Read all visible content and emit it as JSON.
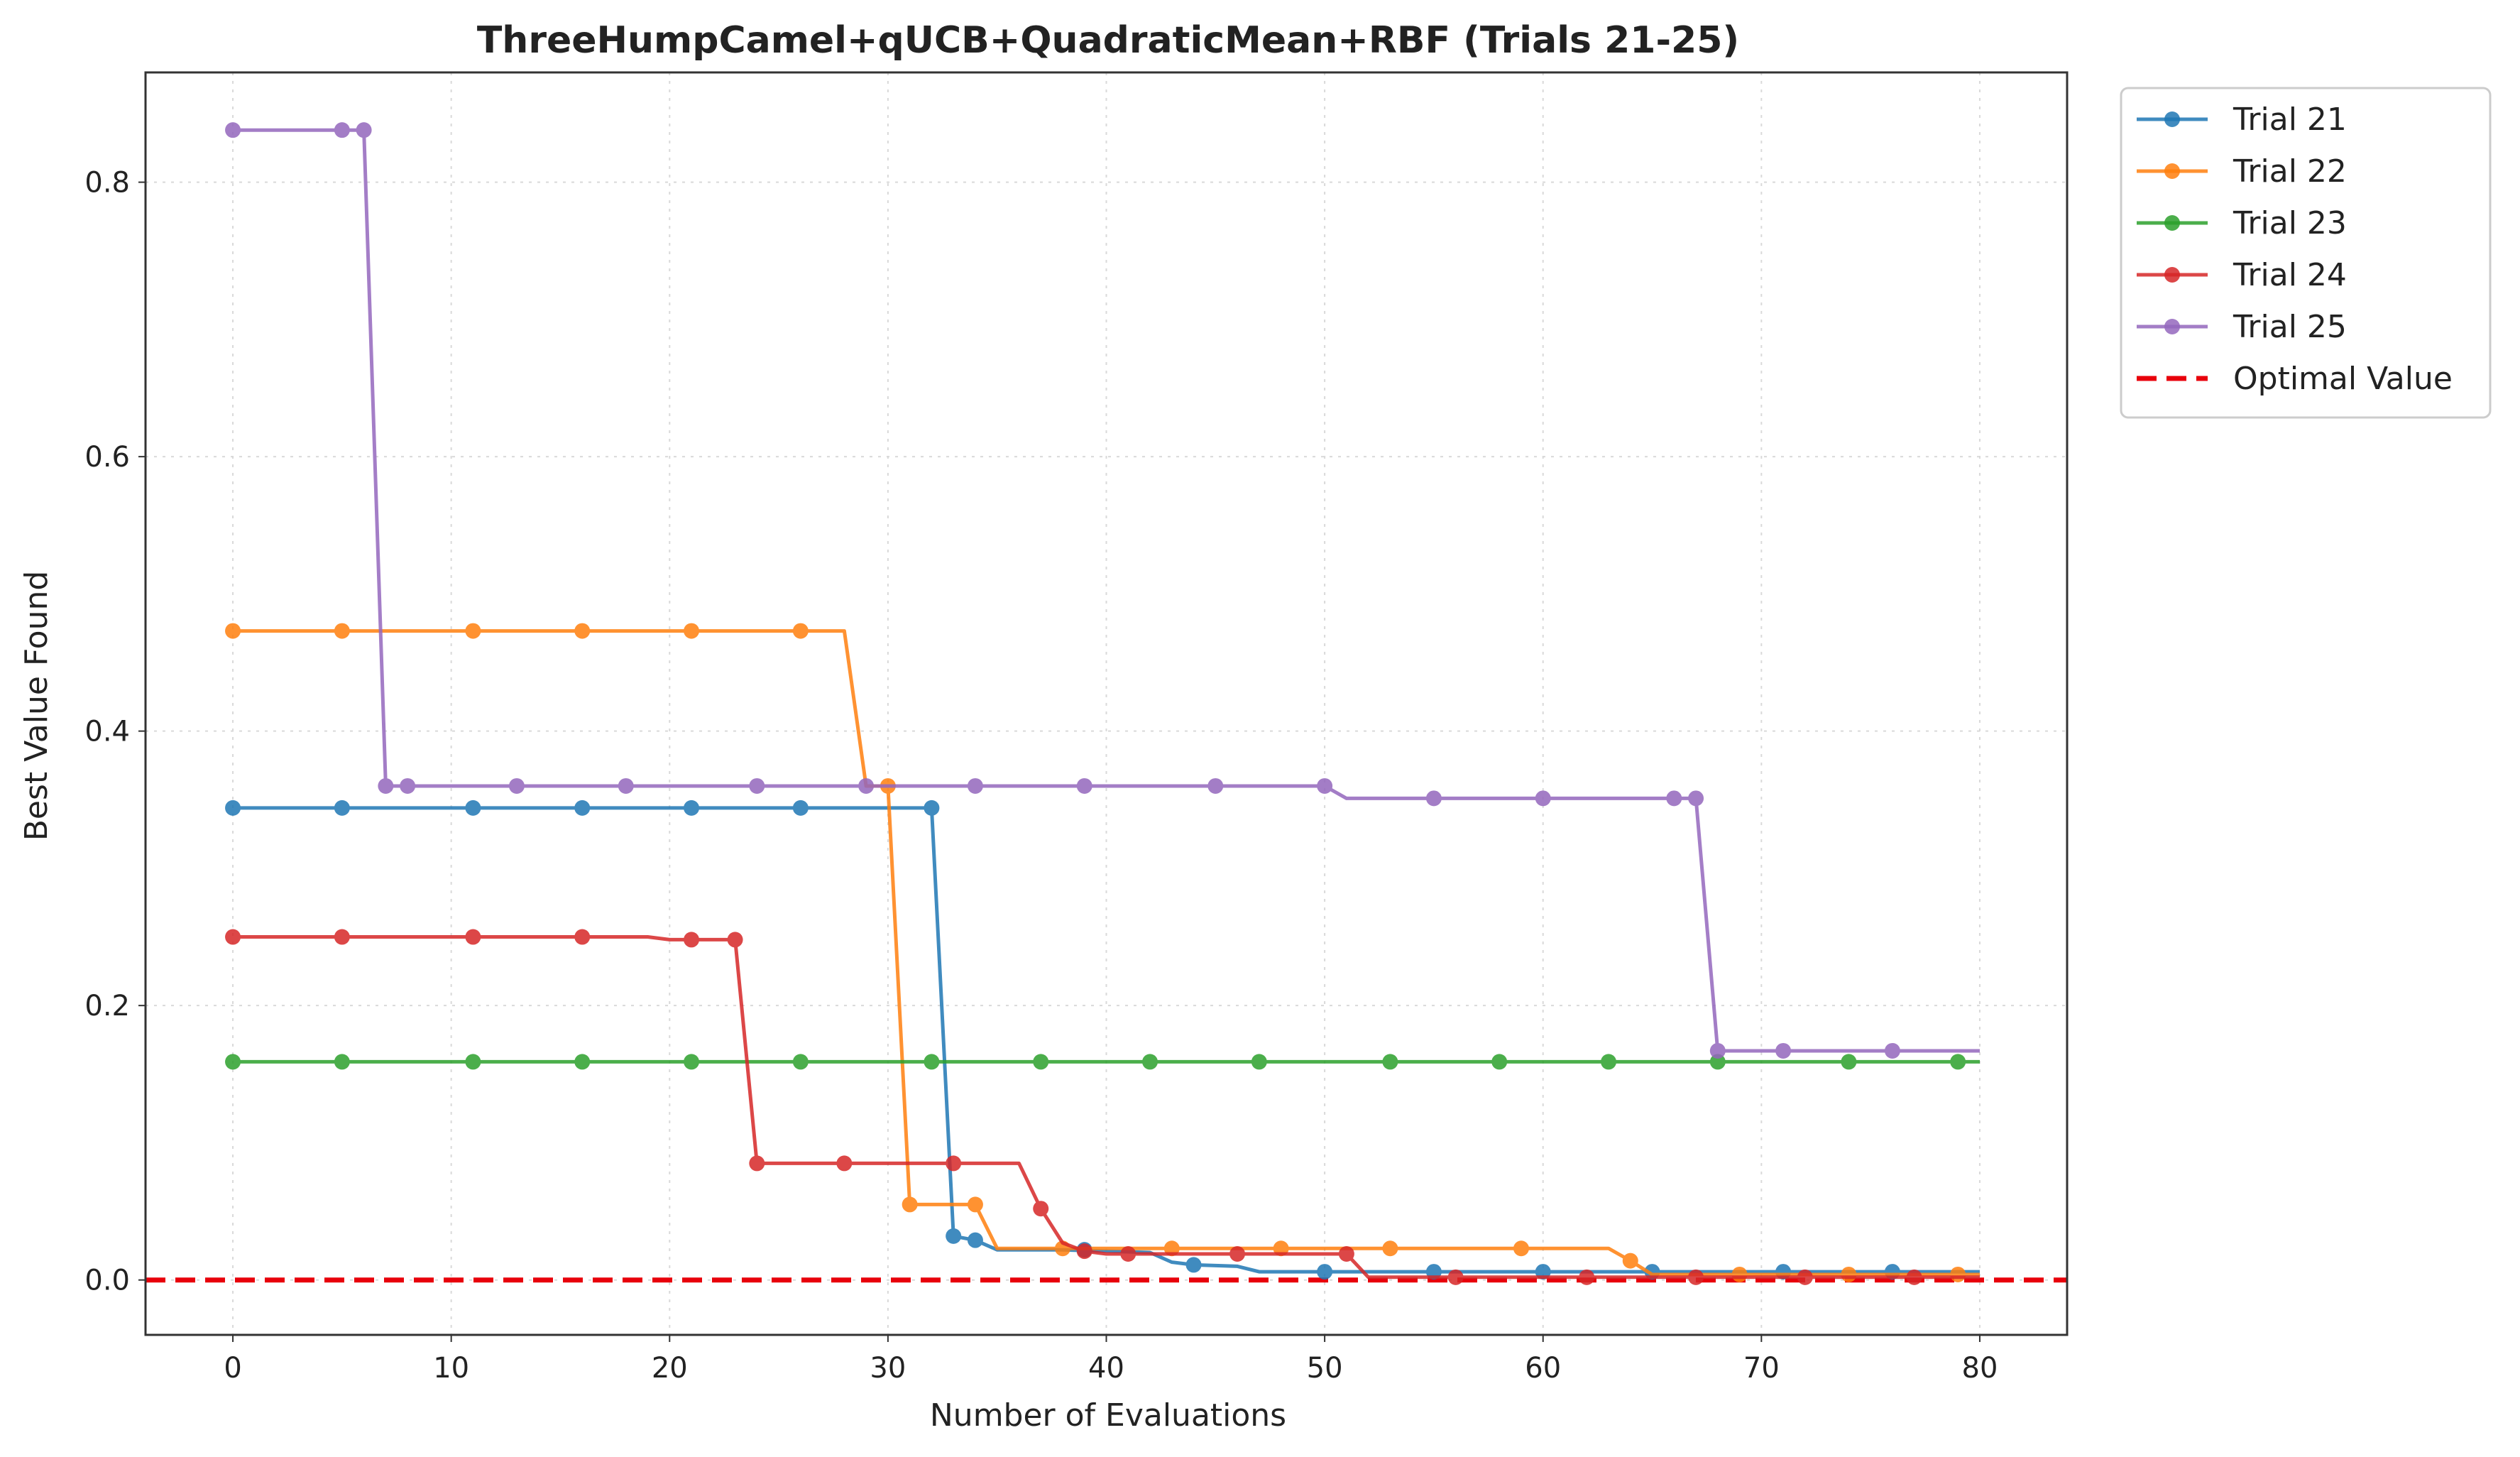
{
  "chart_data": {
    "type": "line",
    "title": "ThreeHumpCamel+qUCB+QuadraticMean+RBF (Trials 21-25)",
    "xlabel": "Number of Evaluations",
    "ylabel": "Best Value Found",
    "xlim": [
      -4,
      84
    ],
    "ylim": [
      -0.04,
      0.88
    ],
    "xticks": [
      0,
      10,
      20,
      30,
      40,
      50,
      60,
      70,
      80
    ],
    "yticks": [
      0.0,
      0.2,
      0.4,
      0.6,
      0.8
    ],
    "xtick_labels": [
      "0",
      "10",
      "20",
      "30",
      "40",
      "50",
      "60",
      "70",
      "80"
    ],
    "ytick_labels": [
      "0.0",
      "0.2",
      "0.4",
      "0.6",
      "0.8"
    ],
    "grid": true,
    "legend_position": "outside-top-right",
    "optimal_value": 0.0,
    "series": [
      {
        "name": "Trial 21",
        "color": "#1f77b4",
        "line": [
          [
            0,
            0.344
          ],
          [
            32,
            0.344
          ],
          [
            33,
            0.032
          ],
          [
            34,
            0.029
          ],
          [
            35,
            0.022
          ],
          [
            38,
            0.022
          ],
          [
            42,
            0.02
          ],
          [
            43,
            0.013
          ],
          [
            44,
            0.011
          ],
          [
            46,
            0.01
          ],
          [
            47,
            0.006
          ],
          [
            80,
            0.006
          ]
        ],
        "markers": [
          [
            0,
            0.344
          ],
          [
            5,
            0.344
          ],
          [
            11,
            0.344
          ],
          [
            16,
            0.344
          ],
          [
            21,
            0.344
          ],
          [
            26,
            0.344
          ],
          [
            32,
            0.344
          ],
          [
            33,
            0.032
          ],
          [
            34,
            0.029
          ],
          [
            39,
            0.022
          ],
          [
            44,
            0.011
          ],
          [
            50,
            0.006
          ],
          [
            55,
            0.006
          ],
          [
            60,
            0.006
          ],
          [
            65,
            0.006
          ],
          [
            71,
            0.006
          ],
          [
            76,
            0.006
          ]
        ]
      },
      {
        "name": "Trial 22",
        "color": "#ff7f0e",
        "line": [
          [
            0,
            0.473
          ],
          [
            28,
            0.473
          ],
          [
            29,
            0.36
          ],
          [
            30,
            0.36
          ],
          [
            31,
            0.055
          ],
          [
            34,
            0.055
          ],
          [
            35,
            0.023
          ],
          [
            63,
            0.023
          ],
          [
            64,
            0.014
          ],
          [
            65,
            0.004
          ],
          [
            80,
            0.004
          ]
        ],
        "markers": [
          [
            0,
            0.473
          ],
          [
            5,
            0.473
          ],
          [
            11,
            0.473
          ],
          [
            16,
            0.473
          ],
          [
            21,
            0.473
          ],
          [
            26,
            0.473
          ],
          [
            30,
            0.36
          ],
          [
            31,
            0.055
          ],
          [
            34,
            0.055
          ],
          [
            38,
            0.023
          ],
          [
            43,
            0.023
          ],
          [
            48,
            0.023
          ],
          [
            53,
            0.023
          ],
          [
            59,
            0.023
          ],
          [
            64,
            0.014
          ],
          [
            69,
            0.004
          ],
          [
            74,
            0.004
          ],
          [
            79,
            0.004
          ]
        ]
      },
      {
        "name": "Trial 23",
        "color": "#2ca02c",
        "line": [
          [
            0,
            0.159
          ],
          [
            80,
            0.159
          ]
        ],
        "markers": [
          [
            0,
            0.159
          ],
          [
            5,
            0.159
          ],
          [
            11,
            0.159
          ],
          [
            16,
            0.159
          ],
          [
            21,
            0.159
          ],
          [
            26,
            0.159
          ],
          [
            32,
            0.159
          ],
          [
            37,
            0.159
          ],
          [
            42,
            0.159
          ],
          [
            47,
            0.159
          ],
          [
            53,
            0.159
          ],
          [
            58,
            0.159
          ],
          [
            63,
            0.159
          ],
          [
            68,
            0.159
          ],
          [
            74,
            0.159
          ],
          [
            79,
            0.159
          ]
        ]
      },
      {
        "name": "Trial 24",
        "color": "#d62728",
        "line": [
          [
            0,
            0.25
          ],
          [
            19,
            0.25
          ],
          [
            20,
            0.248
          ],
          [
            23,
            0.248
          ],
          [
            24,
            0.085
          ],
          [
            36,
            0.085
          ],
          [
            37,
            0.052
          ],
          [
            38,
            0.027
          ],
          [
            39,
            0.021
          ],
          [
            40,
            0.019
          ],
          [
            51,
            0.019
          ],
          [
            52,
            0.002
          ],
          [
            80,
            0.002
          ]
        ],
        "markers": [
          [
            0,
            0.25
          ],
          [
            5,
            0.25
          ],
          [
            11,
            0.25
          ],
          [
            16,
            0.25
          ],
          [
            21,
            0.248
          ],
          [
            23,
            0.248
          ],
          [
            24,
            0.085
          ],
          [
            28,
            0.085
          ],
          [
            33,
            0.085
          ],
          [
            37,
            0.052
          ],
          [
            39,
            0.021
          ],
          [
            41,
            0.019
          ],
          [
            46,
            0.019
          ],
          [
            51,
            0.019
          ],
          [
            56,
            0.002
          ],
          [
            62,
            0.002
          ],
          [
            67,
            0.002
          ],
          [
            72,
            0.002
          ],
          [
            77,
            0.002
          ]
        ]
      },
      {
        "name": "Trial 25",
        "color": "#9467bd",
        "line": [
          [
            0,
            0.838
          ],
          [
            6,
            0.838
          ],
          [
            7,
            0.36
          ],
          [
            50,
            0.36
          ],
          [
            51,
            0.351
          ],
          [
            67,
            0.351
          ],
          [
            68,
            0.167
          ],
          [
            80,
            0.167
          ]
        ],
        "markers": [
          [
            0,
            0.838
          ],
          [
            5,
            0.838
          ],
          [
            6,
            0.838
          ],
          [
            7,
            0.36
          ],
          [
            8,
            0.36
          ],
          [
            13,
            0.36
          ],
          [
            18,
            0.36
          ],
          [
            24,
            0.36
          ],
          [
            29,
            0.36
          ],
          [
            34,
            0.36
          ],
          [
            39,
            0.36
          ],
          [
            45,
            0.36
          ],
          [
            50,
            0.36
          ],
          [
            55,
            0.351
          ],
          [
            60,
            0.351
          ],
          [
            66,
            0.351
          ],
          [
            67,
            0.351
          ],
          [
            68,
            0.167
          ],
          [
            71,
            0.167
          ],
          [
            76,
            0.167
          ]
        ]
      }
    ],
    "optimal_line": {
      "name": "Optimal Value",
      "color": "#e8000b",
      "y": 0.0
    }
  }
}
